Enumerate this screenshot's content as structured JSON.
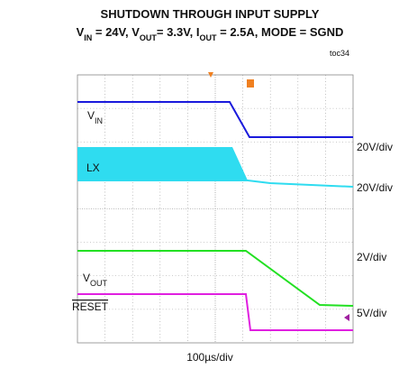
{
  "title": "SHUTDOWN THROUGH INPUT SUPPLY",
  "subtitle": [
    "V",
    "IN",
    " = 24V, V",
    "OUT",
    "= 3.3V, I",
    "OUT",
    " = 2.5A, MODE = SGND"
  ],
  "figure_id": "toc34",
  "channels": [
    {
      "label": [
        "V",
        "IN"
      ],
      "scale": "20V/div"
    },
    {
      "label": [
        "LX"
      ],
      "scale": "20V/div"
    },
    {
      "label": [
        "V",
        "OUT"
      ],
      "scale": "2V/div"
    },
    {
      "label": [
        "RESET"
      ],
      "scale": "5V/div"
    }
  ],
  "time_scale": "100µs/div"
}
